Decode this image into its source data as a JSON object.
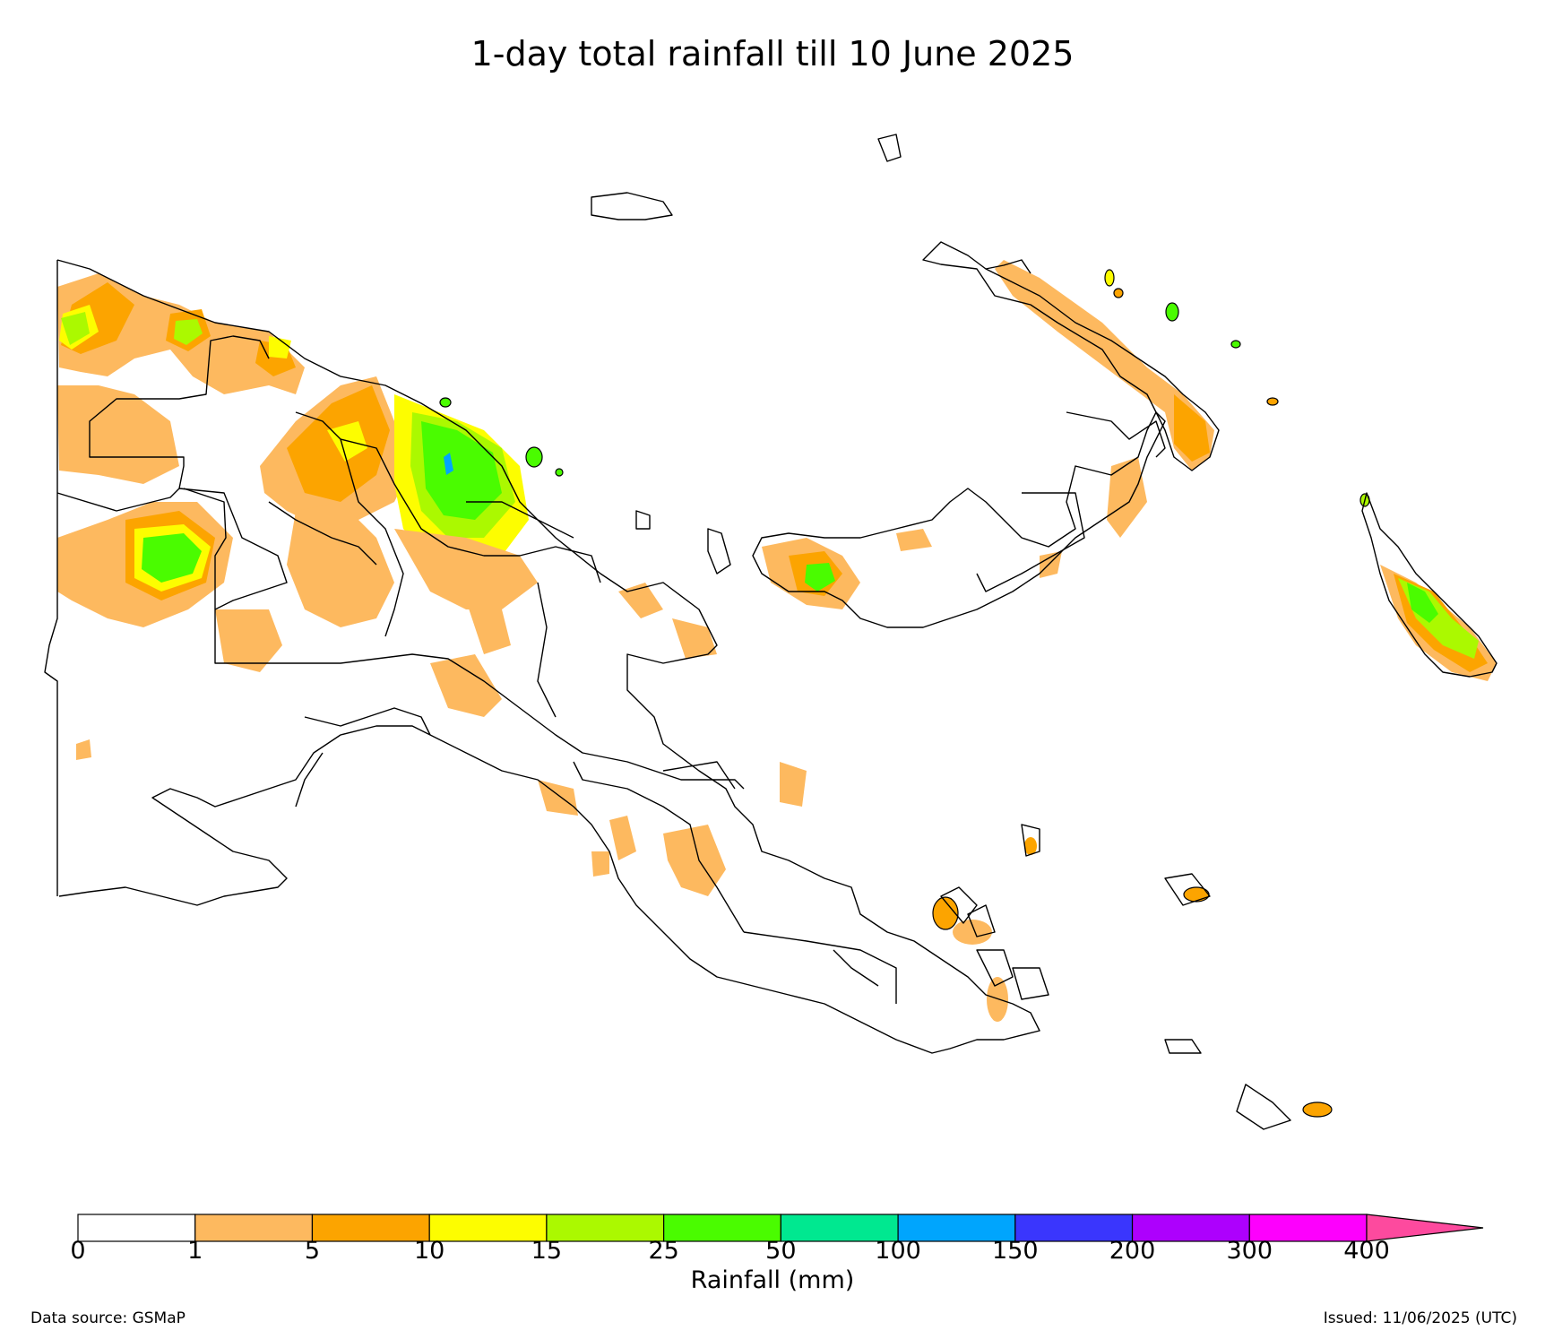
{
  "title": "1-day total rainfall till 10 June 2025",
  "colorbar": {
    "label": "Rainfall (mm)",
    "ticks": [
      "0",
      "1",
      "5",
      "10",
      "15",
      "25",
      "50",
      "100",
      "150",
      "200",
      "300",
      "400"
    ],
    "colors": [
      "#ffffff",
      "#fdb95f",
      "#fca400",
      "#fdfd00",
      "#abf900",
      "#4afc00",
      "#00e890",
      "#00a5fd",
      "#3a36fd",
      "#ad00fd",
      "#fd00fd"
    ],
    "extend_color": "#fd4a9e"
  },
  "footer": {
    "source": "Data source: GSMaP",
    "issued": "Issued: 11/06/2025 (UTC)"
  }
}
